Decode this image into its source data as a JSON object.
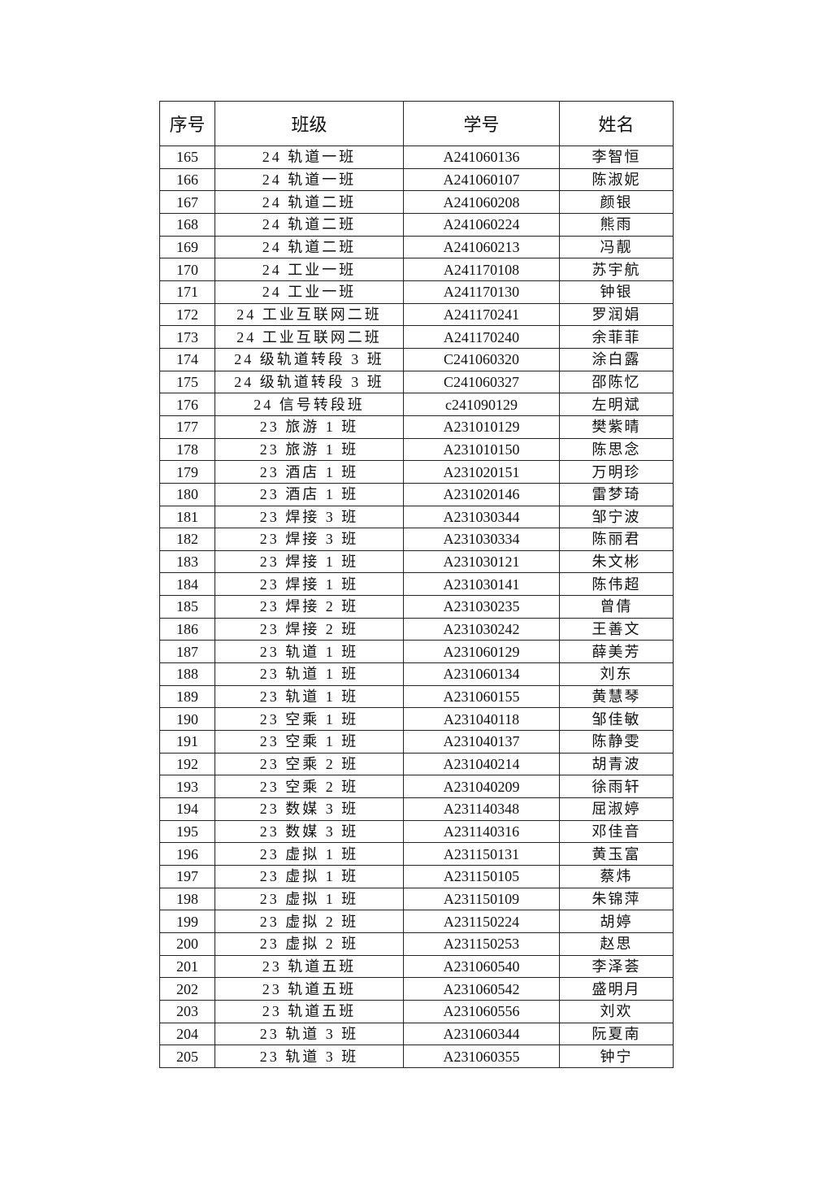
{
  "table": {
    "headers": [
      "序号",
      "班级",
      "学号",
      "姓名"
    ],
    "rows": [
      [
        "165",
        "24 轨道一班",
        "A241060136",
        "李智恒"
      ],
      [
        "166",
        "24 轨道一班",
        "A241060107",
        "陈淑妮"
      ],
      [
        "167",
        "24 轨道二班",
        "A241060208",
        "颜银"
      ],
      [
        "168",
        "24 轨道二班",
        "A241060224",
        "熊雨"
      ],
      [
        "169",
        "24 轨道二班",
        "A241060213",
        "冯靓"
      ],
      [
        "170",
        "24 工业一班",
        "A241170108",
        "苏宇航"
      ],
      [
        "171",
        "24 工业一班",
        "A241170130",
        "钟银"
      ],
      [
        "172",
        "24 工业互联网二班",
        "A241170241",
        "罗润娟"
      ],
      [
        "173",
        "24 工业互联网二班",
        "A241170240",
        "余菲菲"
      ],
      [
        "174",
        "24 级轨道转段 3 班",
        "C241060320",
        "涂白露"
      ],
      [
        "175",
        "24 级轨道转段 3 班",
        "C241060327",
        "邵陈忆"
      ],
      [
        "176",
        "24 信号转段班",
        "c241090129",
        "左明斌"
      ],
      [
        "177",
        "23 旅游 1 班",
        "A231010129",
        "樊紫晴"
      ],
      [
        "178",
        "23 旅游 1 班",
        "A231010150",
        "陈思念"
      ],
      [
        "179",
        "23 酒店 1 班",
        "A231020151",
        "万明珍"
      ],
      [
        "180",
        "23 酒店 1 班",
        "A231020146",
        "雷梦琦"
      ],
      [
        "181",
        "23 焊接 3 班",
        "A231030344",
        "邹宁波"
      ],
      [
        "182",
        "23 焊接 3 班",
        "A231030334",
        "陈丽君"
      ],
      [
        "183",
        "23 焊接 1 班",
        "A231030121",
        "朱文彬"
      ],
      [
        "184",
        "23 焊接 1 班",
        "A231030141",
        "陈伟超"
      ],
      [
        "185",
        "23 焊接 2 班",
        "A231030235",
        "曾倩"
      ],
      [
        "186",
        "23 焊接 2 班",
        "A231030242",
        "王善文"
      ],
      [
        "187",
        "23 轨道 1 班",
        "A231060129",
        "薛美芳"
      ],
      [
        "188",
        "23 轨道 1 班",
        "A231060134",
        "刘东"
      ],
      [
        "189",
        "23 轨道 1 班",
        "A231060155",
        "黄慧琴"
      ],
      [
        "190",
        "23 空乘 1 班",
        "A231040118",
        "邹佳敏"
      ],
      [
        "191",
        "23 空乘 1 班",
        "A231040137",
        "陈静雯"
      ],
      [
        "192",
        "23 空乘 2 班",
        "A231040214",
        "胡青波"
      ],
      [
        "193",
        "23 空乘 2 班",
        "A231040209",
        "徐雨轩"
      ],
      [
        "194",
        "23 数媒 3 班",
        "A231140348",
        "屈淑婷"
      ],
      [
        "195",
        "23 数媒 3 班",
        "A231140316",
        "邓佳音"
      ],
      [
        "196",
        "23 虚拟 1 班",
        "A231150131",
        "黄玉富"
      ],
      [
        "197",
        "23 虚拟 1 班",
        "A231150105",
        "蔡炜"
      ],
      [
        "198",
        "23 虚拟 1 班",
        "A231150109",
        "朱锦萍"
      ],
      [
        "199",
        "23 虚拟 2 班",
        "A231150224",
        "胡婷"
      ],
      [
        "200",
        "23 虚拟 2 班",
        "A231150253",
        "赵思"
      ],
      [
        "201",
        "23 轨道五班",
        "A231060540",
        "李泽荟"
      ],
      [
        "202",
        "23 轨道五班",
        "A231060542",
        "盛明月"
      ],
      [
        "203",
        "23 轨道五班",
        "A231060556",
        "刘欢"
      ],
      [
        "204",
        "23 轨道 3 班",
        "A231060344",
        "阮夏南"
      ],
      [
        "205",
        "23 轨道 3 班",
        "A231060355",
        "钟宁"
      ]
    ]
  }
}
